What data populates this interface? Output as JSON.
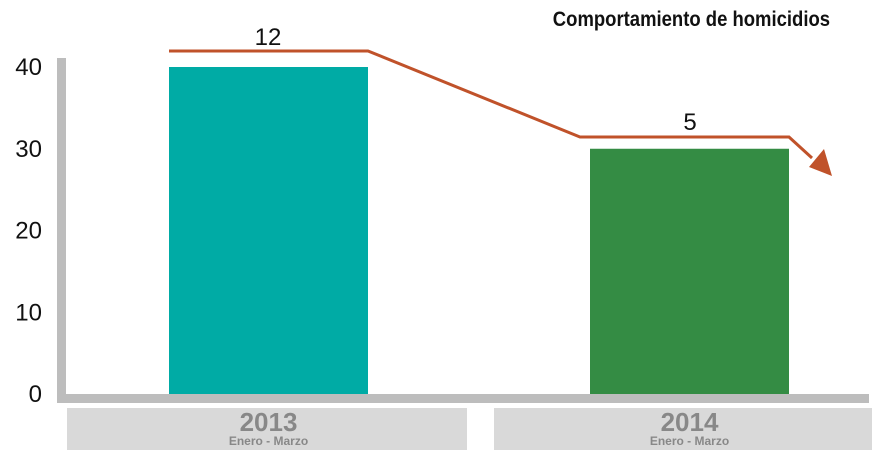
{
  "chart_data": {
    "type": "bar",
    "title": "Comportamiento de homicidios",
    "categories": [
      "2013",
      "2014"
    ],
    "category_sublabels": [
      "Enero - Marzo",
      "Enero - Marzo"
    ],
    "values": [
      40,
      30
    ],
    "bar_colors": [
      "#00aba5",
      "#348c44"
    ],
    "ylim": [
      0,
      40
    ],
    "yticks": [
      0,
      10,
      20,
      30,
      40
    ],
    "grid": false,
    "trend_labels": [
      "12",
      "5"
    ],
    "trend_color": "#c0522a",
    "axis_color": "#bdbdbd",
    "category_box_color": "#d9d9d9"
  }
}
